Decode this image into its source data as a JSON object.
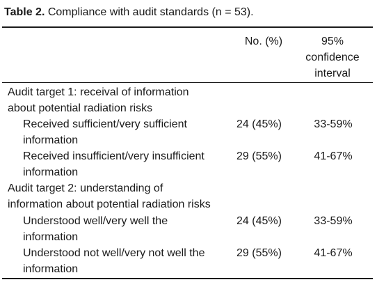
{
  "caption": {
    "label": "Table 2.",
    "text": " Compliance with audit standards (n = 53)."
  },
  "header": {
    "no_label": "No. (%)",
    "ci_line1": "95%",
    "ci_line2": "confidence",
    "ci_line3": "interval"
  },
  "sections": [
    {
      "title_line1": "Audit target 1: receival of information",
      "title_line2": "about potential radiation risks",
      "rows": [
        {
          "label_line1": "Received sufficient/very sufficient",
          "label_line2": "information",
          "no": "24 (45%)",
          "ci": "33-59%"
        },
        {
          "label_line1": "Received insufficient/very insufficient",
          "label_line2": "information",
          "no": "29 (55%)",
          "ci": "41-67%"
        }
      ]
    },
    {
      "title_line1": "Audit target 2: understanding of",
      "title_line2": "information about potential radiation risks",
      "rows": [
        {
          "label_line1": "Understood well/very well the",
          "label_line2": "information",
          "no": "24 (45%)",
          "ci": "33-59%"
        },
        {
          "label_line1": "Understood not well/very not well the",
          "label_line2": "information",
          "no": "29 (55%)",
          "ci": "41-67%"
        }
      ]
    }
  ]
}
